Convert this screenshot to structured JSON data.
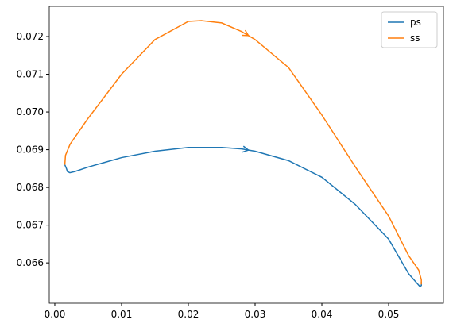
{
  "chart_data": {
    "type": "line",
    "legend": "upper right",
    "xlim": [
      -0.00083,
      0.05821
    ],
    "ylim": [
      0.06493,
      0.0728
    ],
    "xticks": [
      {
        "value": 0,
        "label": "0.00"
      },
      0.01,
      0.02,
      0.03,
      0.04,
      0.05
    ],
    "yticks": [
      0.066,
      0.067,
      0.068,
      0.069,
      {
        "value": 0.07,
        "label": "0.070"
      },
      0.071,
      0.072
    ],
    "series": [
      {
        "name": "ps",
        "color": "#1f77b4",
        "x": [
          0.0015,
          0.0017,
          0.0019,
          0.00226,
          0.003,
          0.005,
          0.01,
          0.015,
          0.02,
          0.025,
          0.028,
          0.03,
          0.035,
          0.04,
          0.045,
          0.05,
          0.053,
          0.0547,
          0.0549,
          0.0549
        ],
        "values": [
          0.0686,
          0.06852,
          0.06842,
          0.06839,
          0.06842,
          0.06854,
          0.06879,
          0.06896,
          0.06906,
          0.06906,
          0.06902,
          0.06896,
          0.06871,
          0.06827,
          0.06755,
          0.06663,
          0.06571,
          0.06537,
          0.0654,
          0.0655
        ]
      },
      {
        "name": "ss",
        "color": "#ff7f0e",
        "x": [
          0.0015,
          0.0016,
          0.0023,
          0.0049,
          0.01,
          0.015,
          0.02,
          0.022,
          0.025,
          0.028,
          0.03,
          0.035,
          0.04,
          0.045,
          0.05,
          0.053,
          0.0545,
          0.0549,
          0.0549
        ],
        "values": [
          0.0686,
          0.06885,
          0.06915,
          0.06981,
          0.071,
          0.07192,
          0.0724,
          0.07242,
          0.07236,
          0.07213,
          0.07192,
          0.07118,
          0.06992,
          0.06855,
          0.06724,
          0.06619,
          0.06581,
          0.06555,
          0.06543
        ]
      }
    ]
  }
}
